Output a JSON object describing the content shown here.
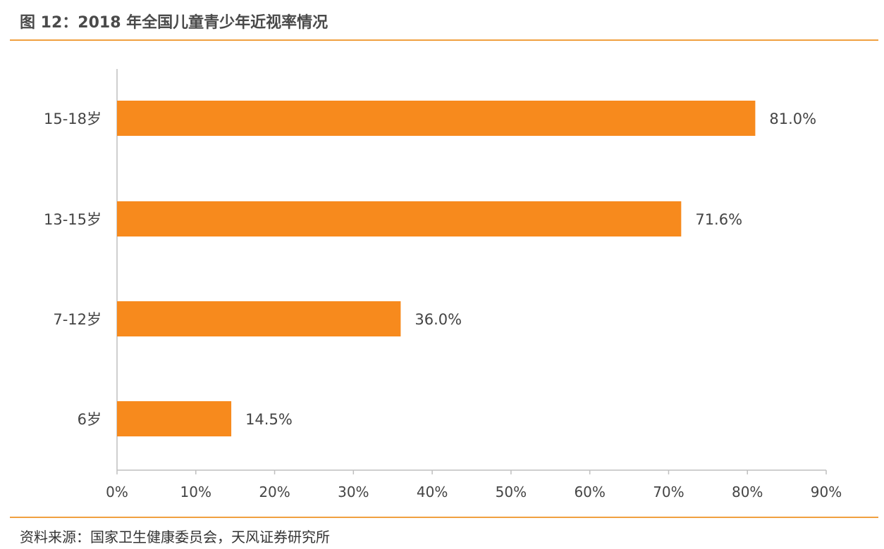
{
  "title": "图 12：2018 年全国儿童青少年近视率情况",
  "source": "资料来源：国家卫生健康委员会，天风证券研究所",
  "colors": {
    "bar": "#f78a1d",
    "rule": "#f0a040",
    "axis": "#bfbfbf"
  },
  "chart_data": {
    "type": "bar",
    "orientation": "horizontal",
    "categories": [
      "15-18岁",
      "13-15岁",
      "7-12岁",
      "6岁"
    ],
    "values": [
      81.0,
      71.6,
      36.0,
      14.5
    ],
    "value_labels": [
      "81.0%",
      "71.6%",
      "36.0%",
      "14.5%"
    ],
    "xlim": [
      0,
      90
    ],
    "xticks": [
      "0%",
      "10%",
      "20%",
      "30%",
      "40%",
      "50%",
      "60%",
      "70%",
      "80%",
      "90%"
    ],
    "grid": false,
    "legend": "none"
  }
}
